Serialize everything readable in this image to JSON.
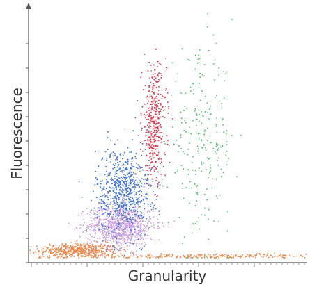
{
  "chart_data": {
    "type": "scatter",
    "title": "",
    "xlabel": "Granularity",
    "ylabel": "Fluorescence",
    "xlim": [
      0,
      100
    ],
    "ylim": [
      0,
      100
    ],
    "grid": false,
    "legend": "none",
    "series": [
      {
        "color": "#e8864a",
        "clusters": [
          {
            "cx": 18,
            "cy": 3,
            "sx": 7,
            "sy": 1.5,
            "n": 500
          },
          {
            "cx": 62,
            "cy": 0.6,
            "sx": 28,
            "sy": 0.5,
            "n": 300
          }
        ]
      },
      {
        "color": "#cc99dd",
        "clusters": [
          {
            "cx": 33,
            "cy": 13,
            "sx": 6,
            "sy": 4.5,
            "n": 850
          }
        ]
      },
      {
        "color": "#3a6fd0",
        "clusters": [
          {
            "cx": 34,
            "cy": 27,
            "sx": 5,
            "sy": 9,
            "n": 750
          }
        ]
      },
      {
        "color": "#d8344a",
        "clusters": [
          {
            "cx": 45,
            "cy": 55,
            "sx": 2.2,
            "sy": 12,
            "n": 400
          }
        ]
      },
      {
        "color": "#4fba6a",
        "clusters": [
          {
            "cx": 62,
            "cy": 47,
            "sx": 6,
            "sy": 18,
            "n": 250
          }
        ]
      }
    ]
  }
}
